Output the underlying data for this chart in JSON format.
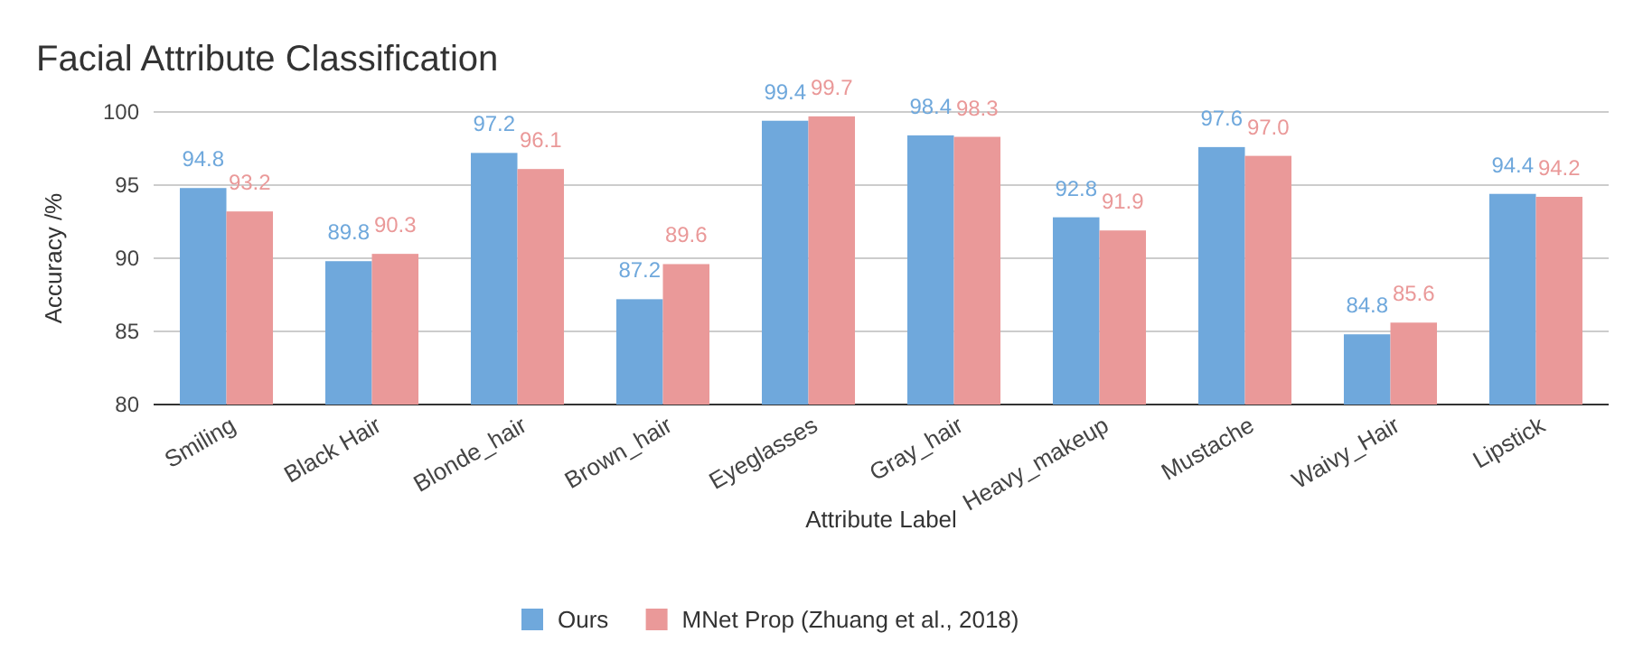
{
  "chart_data": {
    "type": "bar",
    "title": "Facial Attribute Classification",
    "xlabel": "Attribute Label",
    "ylabel": "Accuracy /%",
    "categories": [
      "Smiling",
      "Black Hair",
      "Blonde_hair",
      "Brown_hair",
      "Eyeglasses",
      "Gray_hair",
      "Heavy_makeup",
      "Mustache",
      "Waivy_Hair",
      "Lipstick"
    ],
    "series": [
      {
        "name": "Ours",
        "color": "#6fa8dc",
        "values": [
          94.8,
          89.8,
          97.2,
          87.2,
          99.4,
          98.4,
          92.8,
          97.6,
          84.8,
          94.4
        ],
        "value_labels": [
          "94.8",
          "89.8",
          "97.2",
          "87.2",
          "99.4",
          "98.4",
          "92.8",
          "97.6",
          "84.8",
          "94.4"
        ]
      },
      {
        "name": "MNet Prop (Zhuang et al., 2018)",
        "color": "#ea9999",
        "values": [
          93.2,
          90.3,
          96.1,
          89.6,
          99.7,
          98.3,
          91.9,
          97.0,
          85.6,
          94.2
        ],
        "value_labels": [
          "93.2",
          "90.3",
          "96.1",
          "89.6",
          "99.7",
          "98.3",
          "91.9",
          "97.0",
          "85.6",
          "94.2"
        ]
      }
    ],
    "ylim": [
      80,
      100
    ],
    "yticks": [
      80,
      85,
      90,
      95,
      100
    ],
    "grid": "y",
    "legend": "bottom"
  }
}
